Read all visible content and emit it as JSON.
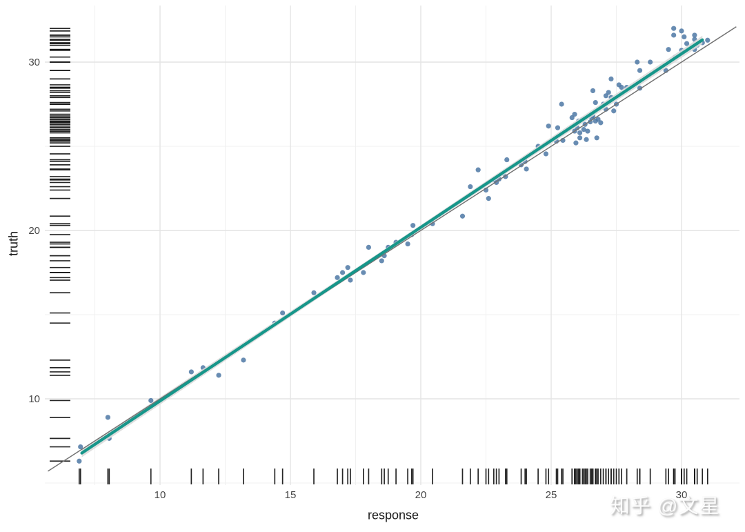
{
  "watermark": {
    "text": "知乎 @文星"
  },
  "chart_data": {
    "type": "scatter",
    "title": "",
    "xlabel": "response",
    "ylabel": "truth",
    "x_ticks": [
      10,
      15,
      20,
      25,
      30
    ],
    "y_ticks": [
      10,
      20,
      30
    ],
    "x_minor_ticks": [
      7.5,
      12.5,
      17.5,
      22.5,
      27.5
    ],
    "y_minor_ticks": [
      5,
      15,
      25
    ],
    "xlim": [
      5.6,
      32.1
    ],
    "ylim": [
      4.9,
      33.4
    ],
    "grid": "major+minor",
    "legend_position": "none",
    "background_color": "#ffffff",
    "major_grid_color": "#e4e4e4",
    "minor_grid_color": "#f0f0f0",
    "point_color": "#4d78a4",
    "smooth_color": "#17968a",
    "band_color": "#dadada",
    "identity_color": "#737373",
    "rug_color": "#141414",
    "tick_label_color": "#454545",
    "identity_line": {
      "slope": 1,
      "intercept": 0,
      "x_range": [
        5.7,
        32.1
      ]
    },
    "smooth_line": {
      "x": [
        7.0,
        30.8
      ],
      "y": [
        6.78,
        31.32
      ]
    },
    "rug_axes": [
      "x",
      "y"
    ],
    "points": [
      [
        6.9,
        6.3
      ],
      [
        6.95,
        7.15
      ],
      [
        8.0,
        8.9
      ],
      [
        8.05,
        7.65
      ],
      [
        9.65,
        9.9
      ],
      [
        11.2,
        11.6
      ],
      [
        11.65,
        11.85
      ],
      [
        12.25,
        11.4
      ],
      [
        13.2,
        12.3
      ],
      [
        14.4,
        14.5
      ],
      [
        14.7,
        15.1
      ],
      [
        15.9,
        16.3
      ],
      [
        16.8,
        17.2
      ],
      [
        17.0,
        17.5
      ],
      [
        17.2,
        17.8
      ],
      [
        17.3,
        17.05
      ],
      [
        17.8,
        17.5
      ],
      [
        18.0,
        19.0
      ],
      [
        18.5,
        18.2
      ],
      [
        18.6,
        18.5
      ],
      [
        18.75,
        19.0
      ],
      [
        19.05,
        19.3
      ],
      [
        19.5,
        19.2
      ],
      [
        19.65,
        19.75
      ],
      [
        19.7,
        20.3
      ],
      [
        20.45,
        20.4
      ],
      [
        21.6,
        20.85
      ],
      [
        21.9,
        22.6
      ],
      [
        22.2,
        23.6
      ],
      [
        22.5,
        22.4
      ],
      [
        22.6,
        21.9
      ],
      [
        22.8,
        23.0
      ],
      [
        22.9,
        22.85
      ],
      [
        23.0,
        23.05
      ],
      [
        23.25,
        23.2
      ],
      [
        23.3,
        24.2
      ],
      [
        23.85,
        23.9
      ],
      [
        24.0,
        24.1
      ],
      [
        24.05,
        23.65
      ],
      [
        24.5,
        25.0
      ],
      [
        24.8,
        24.55
      ],
      [
        24.9,
        26.2
      ],
      [
        25.2,
        25.3
      ],
      [
        25.25,
        26.1
      ],
      [
        25.4,
        27.5
      ],
      [
        25.45,
        25.35
      ],
      [
        25.8,
        26.7
      ],
      [
        25.9,
        26.9
      ],
      [
        25.9,
        25.9
      ],
      [
        25.95,
        25.2
      ],
      [
        26.0,
        26.1
      ],
      [
        26.05,
        26.5
      ],
      [
        26.1,
        25.8
      ],
      [
        26.1,
        25.5
      ],
      [
        26.2,
        26.6
      ],
      [
        26.25,
        26.0
      ],
      [
        26.3,
        26.3
      ],
      [
        26.35,
        25.4
      ],
      [
        26.4,
        25.9
      ],
      [
        26.5,
        26.45
      ],
      [
        26.55,
        26.7
      ],
      [
        26.6,
        26.8
      ],
      [
        26.6,
        28.3
      ],
      [
        26.7,
        26.5
      ],
      [
        26.7,
        27.6
      ],
      [
        26.75,
        25.5
      ],
      [
        26.8,
        26.6
      ],
      [
        26.9,
        26.4
      ],
      [
        27.0,
        27.5
      ],
      [
        27.1,
        27.2
      ],
      [
        27.1,
        28.0
      ],
      [
        27.2,
        28.2
      ],
      [
        27.3,
        27.9
      ],
      [
        27.3,
        29.0
      ],
      [
        27.4,
        27.1
      ],
      [
        27.5,
        27.5
      ],
      [
        27.6,
        28.65
      ],
      [
        27.7,
        28.5
      ],
      [
        27.9,
        28.5
      ],
      [
        28.4,
        28.45
      ],
      [
        28.3,
        30.0
      ],
      [
        28.4,
        29.5
      ],
      [
        28.8,
        30.0
      ],
      [
        29.4,
        29.5
      ],
      [
        29.5,
        30.75
      ],
      [
        29.7,
        32.0
      ],
      [
        29.7,
        31.6
      ],
      [
        29.75,
        30.3
      ],
      [
        30.0,
        31.85
      ],
      [
        30.0,
        30.7
      ],
      [
        30.1,
        31.5
      ],
      [
        30.2,
        31.1
      ],
      [
        30.5,
        31.6
      ],
      [
        30.5,
        31.35
      ],
      [
        30.5,
        30.75
      ],
      [
        30.6,
        31.0
      ],
      [
        30.8,
        31.15
      ],
      [
        31.0,
        31.3
      ]
    ]
  }
}
